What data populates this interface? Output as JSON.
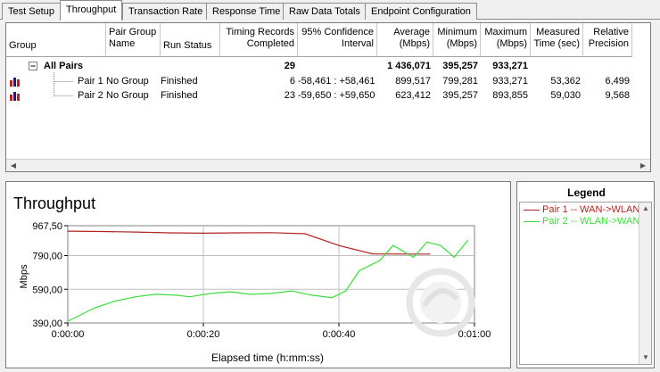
{
  "tabs": [
    "Test Setup",
    "Throughput",
    "Transaction Rate",
    "Response Time",
    "Raw Data Totals",
    "Endpoint Configuration"
  ],
  "columns": {
    "group": "Group",
    "pair_group_name": [
      "Pair Group",
      "Name"
    ],
    "run_status": "Run Status",
    "timing_records": [
      "Timing Records",
      "Completed"
    ],
    "confidence": [
      "95% Confidence",
      "Interval"
    ],
    "average": [
      "Average",
      "(Mbps)"
    ],
    "minimum": [
      "Minimum",
      "(Mbps)"
    ],
    "maximum": [
      "Maximum",
      "(Mbps)"
    ],
    "measured_time": [
      "Measured",
      "Time (sec)"
    ],
    "relative_precision": [
      "Relative",
      "Precision"
    ]
  },
  "all_pairs": {
    "label": "All Pairs",
    "timing_records": "29",
    "average": "1 436,071",
    "minimum": "395,257",
    "maximum": "933,271"
  },
  "pairs": [
    {
      "label": "Pair 1",
      "group_name": "No Group",
      "run_status": "Finished",
      "timing_records": "6",
      "confidence": "-58,461 : +58,461",
      "average": "899,517",
      "minimum": "799,281",
      "maximum": "933,271",
      "measured_time": "53,362",
      "relative_precision": "6,499"
    },
    {
      "label": "Pair 2",
      "group_name": "No Group",
      "run_status": "Finished",
      "timing_records": "23",
      "confidence": "-59,650 : +59,650",
      "average": "623,412",
      "minimum": "395,257",
      "maximum": "893,855",
      "measured_time": "59,030",
      "relative_precision": "9,568"
    }
  ],
  "legend": {
    "title": "Legend",
    "items": [
      {
        "label": "Pair 1 -- WAN->WLAN",
        "color": "#b22222"
      },
      {
        "label": "Pair 2 -- WLAN->WAN",
        "color": "#3ddc3d"
      }
    ]
  },
  "chart_data": {
    "type": "line",
    "title": "Throughput",
    "xlabel": "Elapsed time (h:mm:ss)",
    "ylabel": "Mbps",
    "x_tick_labels": [
      "0:00:00",
      "0:00:20",
      "0:00:40",
      "0:01:00"
    ],
    "y_tick_labels": [
      "390,00",
      "590,00",
      "790,00",
      "967,50"
    ],
    "xlim": [
      0,
      60
    ],
    "ylim": [
      390,
      967.5
    ],
    "grid": true,
    "series": [
      {
        "name": "Pair 1 -- WAN->WLAN",
        "color": "#b22222",
        "x": [
          0,
          5,
          10,
          15,
          20,
          25,
          30,
          35,
          40,
          45,
          50,
          53.4
        ],
        "y": [
          935,
          933,
          930,
          925,
          923,
          925,
          926,
          920,
          850,
          800,
          799,
          799
        ]
      },
      {
        "name": "Pair 2 -- WLAN->WAN",
        "color": "#3ddc3d",
        "x": [
          0,
          4,
          7,
          10,
          13,
          16,
          18,
          21,
          24,
          27,
          30,
          33,
          36,
          39,
          41,
          43,
          46,
          48,
          51,
          53,
          55,
          57,
          59
        ],
        "y": [
          400,
          480,
          520,
          545,
          560,
          555,
          545,
          565,
          575,
          560,
          565,
          580,
          555,
          540,
          580,
          700,
          760,
          850,
          780,
          870,
          850,
          780,
          880
        ]
      }
    ]
  }
}
